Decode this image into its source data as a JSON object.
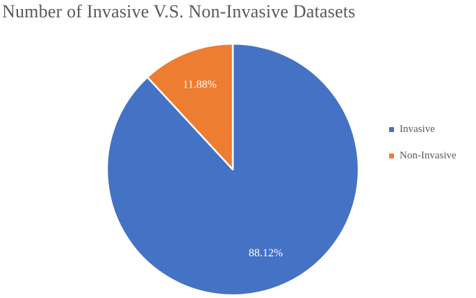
{
  "chart_data": {
    "type": "pie",
    "title": "Number of Invasive V.S. Non-Invasive Datasets",
    "categories": [
      "Invasive",
      "Non-Invasive"
    ],
    "values": [
      88.12,
      11.88
    ],
    "data_labels": [
      "88.12%",
      "11.88%"
    ],
    "colors": [
      "#4472C4",
      "#ED7D31"
    ],
    "legend_position": "right"
  }
}
